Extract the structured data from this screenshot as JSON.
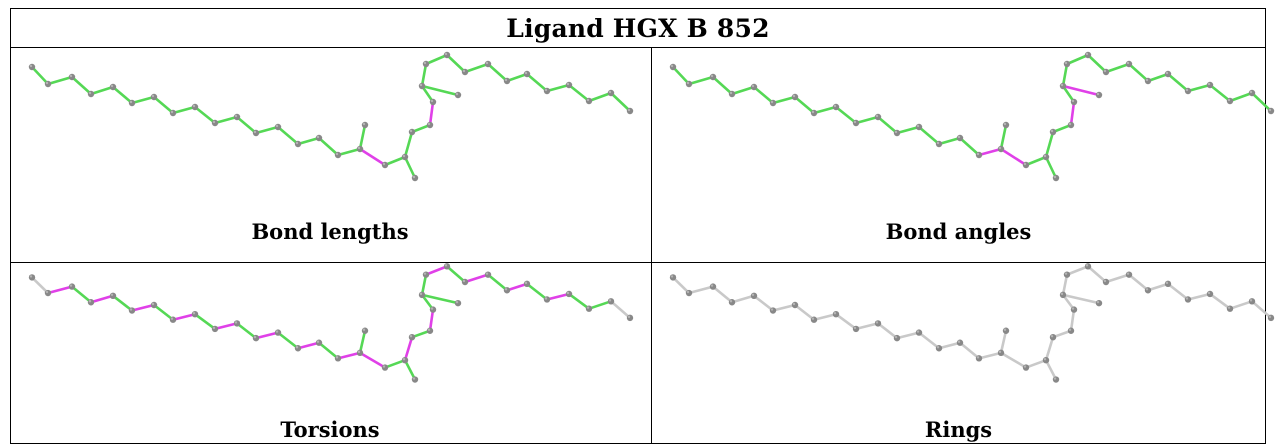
{
  "title": "Ligand HGX B 852",
  "panels": [
    {
      "caption": "Bond lengths"
    },
    {
      "caption": "Bond angles"
    },
    {
      "caption": "Torsions"
    },
    {
      "caption": "Rings"
    }
  ],
  "colors": {
    "green": "#55d855",
    "magenta": "#e040e8",
    "gray_bond": "#c9c9c9",
    "atom": "#888888",
    "atom_highlight": "#b4b4b4"
  }
}
